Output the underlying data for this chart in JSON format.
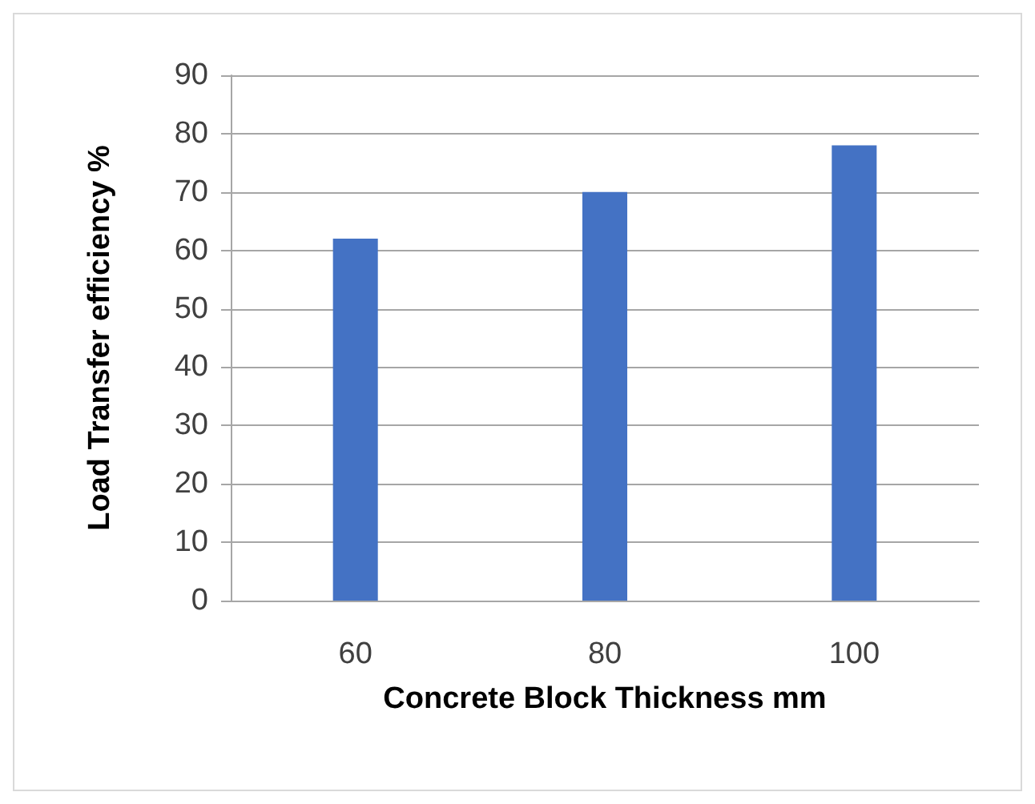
{
  "chart_data": {
    "type": "bar",
    "xlabel": "Concrete Block Thickness mm",
    "ylabel": "Load Transfer efficiency %",
    "categories": [
      "60",
      "80",
      "100"
    ],
    "values": [
      62,
      70,
      78
    ],
    "color": "#4472c4",
    "ylim": [
      0,
      90
    ],
    "yticks": [
      0,
      10,
      20,
      30,
      40,
      50,
      60,
      70,
      80,
      90
    ],
    "grid": "y"
  }
}
